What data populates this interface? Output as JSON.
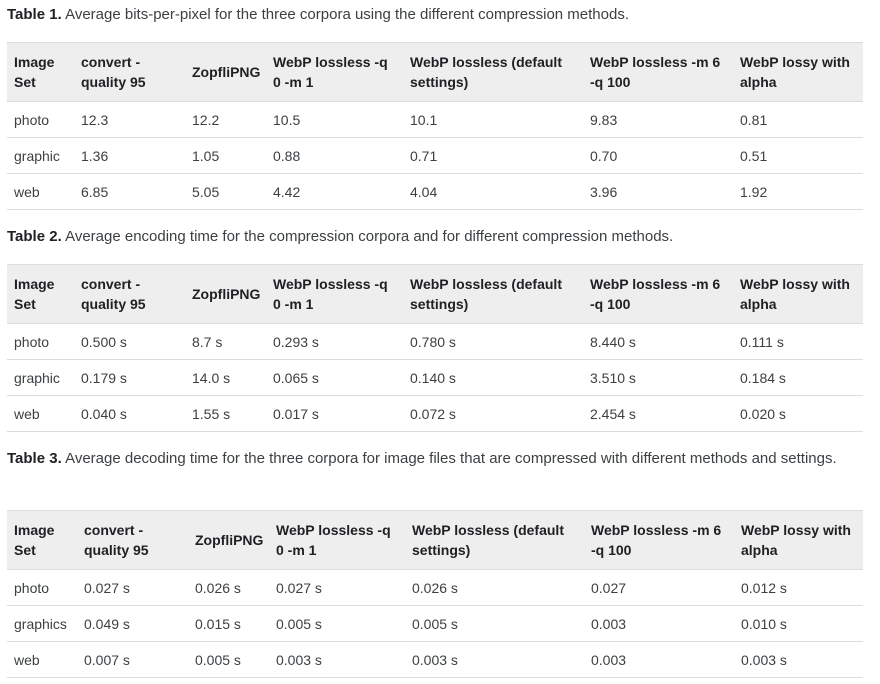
{
  "tables": [
    {
      "caption_label": "Table 1.",
      "caption_text": " Average bits-per-pixel for the three corpora using the different compression methods.",
      "headers": [
        "Image Set",
        "convert -quality 95",
        "ZopfliPNG",
        "WebP lossless -q 0 -m 1",
        "WebP lossless (default settings)",
        "WebP lossless -m 6 -q 100",
        "WebP lossy with alpha"
      ],
      "rows": [
        [
          "photo",
          "12.3",
          "12.2",
          "10.5",
          "10.1",
          "9.83",
          "0.81"
        ],
        [
          "graphic",
          "1.36",
          "1.05",
          "0.88",
          "0.71",
          "0.70",
          "0.51"
        ],
        [
          "web",
          "6.85",
          "5.05",
          "4.42",
          "4.04",
          "3.96",
          "1.92"
        ]
      ]
    },
    {
      "caption_label": "Table 2.",
      "caption_text": " Average encoding time for the compression corpora and for different compression methods.",
      "headers": [
        "Image Set",
        "convert -quality 95",
        "ZopfliPNG",
        "WebP lossless -q 0 -m 1",
        "WebP lossless (default settings)",
        "WebP lossless -m 6 -q 100",
        "WebP lossy with alpha"
      ],
      "rows": [
        [
          "photo",
          "0.500 s",
          "8.7 s",
          "0.293 s",
          "0.780 s",
          "8.440 s",
          "0.111 s"
        ],
        [
          "graphic",
          "0.179 s",
          "14.0 s",
          "0.065 s",
          "0.140 s",
          "3.510 s",
          "0.184 s"
        ],
        [
          "web",
          "0.040 s",
          "1.55 s",
          "0.017 s",
          "0.072 s",
          "2.454 s",
          "0.020 s"
        ]
      ]
    },
    {
      "caption_label": "Table 3.",
      "caption_text": " Average decoding time for the three corpora for image files that are compressed with different methods and settings.",
      "headers": [
        "Image Set",
        "convert -quality 95",
        "ZopfliPNG",
        "WebP lossless -q 0 -m 1",
        "WebP lossless (default settings)",
        "WebP lossless -m 6 -q 100",
        "WebP lossy with alpha"
      ],
      "rows": [
        [
          "photo",
          "0.027 s",
          "0.026 s",
          "0.027 s",
          "0.026 s",
          "0.027",
          "0.012 s"
        ],
        [
          "graphics",
          "0.049 s",
          "0.015 s",
          "0.005 s",
          "0.005 s",
          "0.003",
          "0.010 s"
        ],
        [
          "web",
          "0.007 s",
          "0.005 s",
          "0.003 s",
          "0.003 s",
          "0.003",
          "0.003 s"
        ]
      ]
    }
  ]
}
